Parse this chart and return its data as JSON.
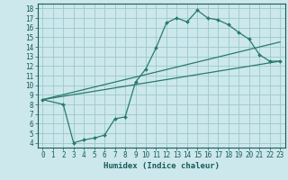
{
  "xlabel": "Humidex (Indice chaleur)",
  "bg_color": "#cce8ec",
  "grid_color": "#9ac8cc",
  "line_color": "#2a7a6a",
  "xlim": [
    -0.5,
    23.5
  ],
  "ylim": [
    3.5,
    18.5
  ],
  "xticks": [
    0,
    1,
    2,
    3,
    4,
    5,
    6,
    7,
    8,
    9,
    10,
    11,
    12,
    13,
    14,
    15,
    16,
    17,
    18,
    19,
    20,
    21,
    22,
    23
  ],
  "yticks": [
    4,
    5,
    6,
    7,
    8,
    9,
    10,
    11,
    12,
    13,
    14,
    15,
    16,
    17,
    18
  ],
  "curve1_x": [
    0,
    2,
    3,
    4,
    5,
    6,
    7,
    8,
    9,
    10,
    11,
    12,
    13,
    14,
    15,
    16,
    17,
    18,
    19,
    20,
    21,
    22,
    23
  ],
  "curve1_y": [
    8.5,
    8.0,
    4.0,
    4.3,
    4.5,
    4.8,
    6.5,
    6.7,
    10.3,
    11.7,
    13.9,
    16.5,
    17.0,
    16.6,
    17.8,
    17.0,
    16.8,
    16.3,
    15.5,
    14.8,
    13.2,
    12.5,
    12.5
  ],
  "line2_x": [
    0,
    23
  ],
  "line2_y": [
    8.5,
    14.5
  ],
  "line3_x": [
    0,
    23
  ],
  "line3_y": [
    8.5,
    12.5
  ],
  "tick_fontsize": 5.5,
  "xlabel_fontsize": 6.5,
  "tick_color": "#1a5a5a"
}
